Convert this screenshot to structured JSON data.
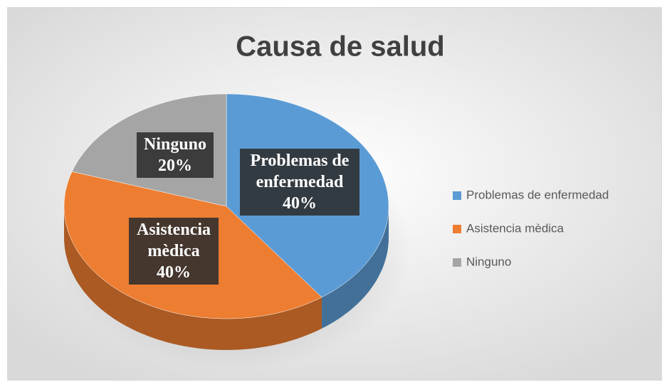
{
  "chart_data": {
    "type": "pie",
    "title": "Causa de salud",
    "categories": [
      "Problemas de enfermedad",
      "Asistencia mèdica",
      "Ninguno"
    ],
    "values": [
      40,
      40,
      20
    ],
    "value_labels": [
      "40%",
      "40%",
      "20%"
    ],
    "colors": [
      "#5b9bd5",
      "#ed7d31",
      "#a5a5a5"
    ],
    "legend": "right"
  }
}
